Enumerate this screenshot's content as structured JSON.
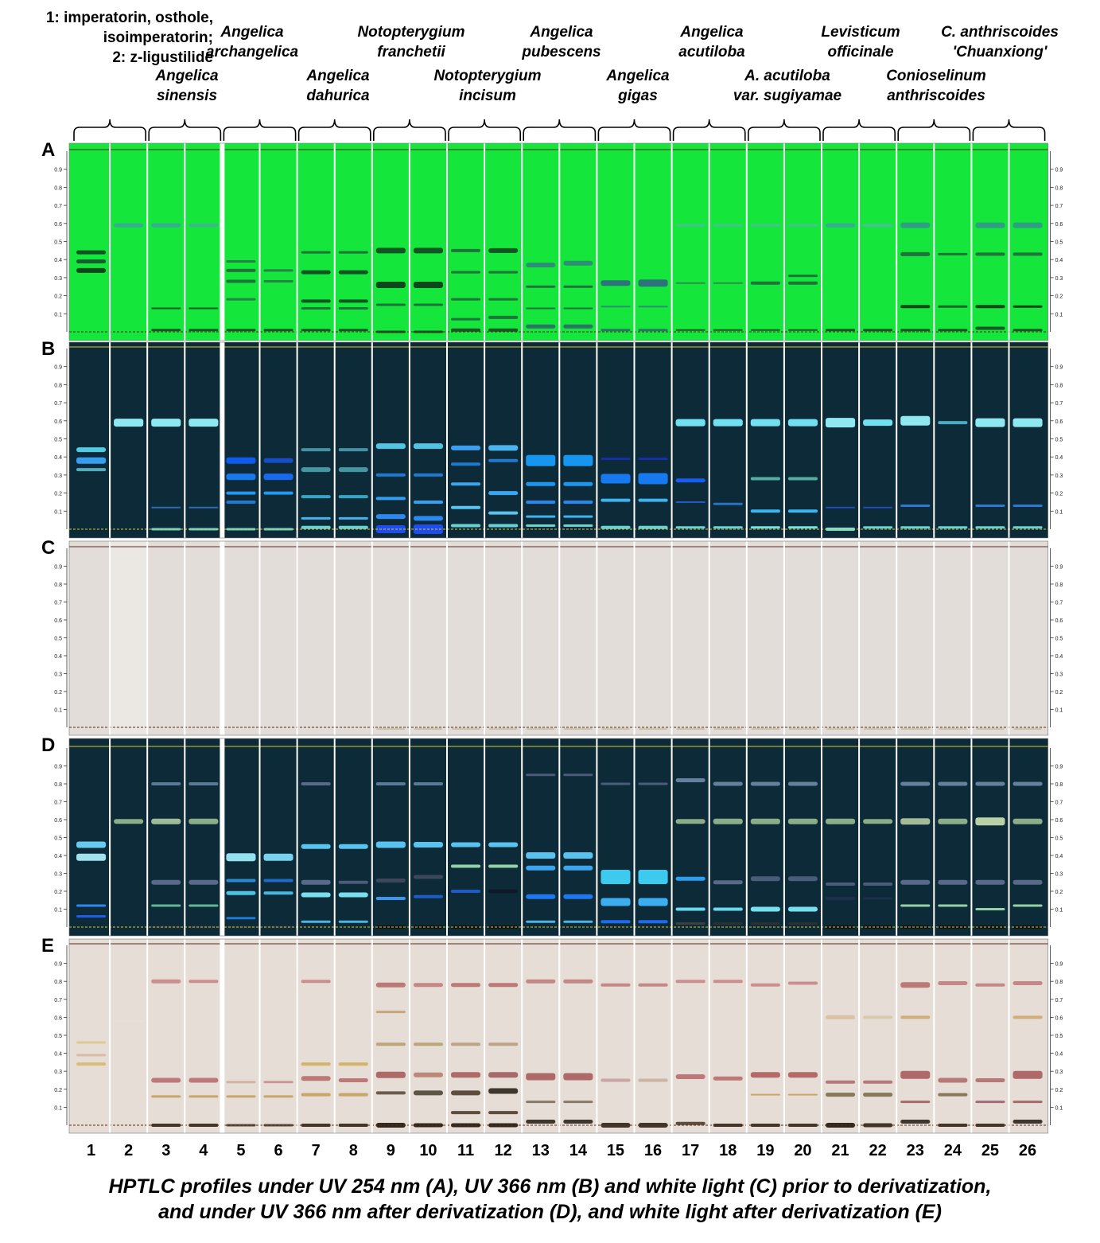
{
  "legend": {
    "line1": "1: imperatorin,  osthole,",
    "line2": "isoimperatorin;",
    "line3": "2: z-ligustilide"
  },
  "species": [
    {
      "line1": "Angelica",
      "line2": "archangelica"
    },
    {
      "line1": "Notopterygium",
      "line2": "franchetii"
    },
    {
      "line1": "Angelica",
      "line2": "pubescens"
    },
    {
      "line1": "Angelica",
      "line2": "acutiloba"
    },
    {
      "line1": "Levisticum",
      "line2": "officinale"
    },
    {
      "line1": "C. anthriscoides",
      "line2": "'Chuanxiong'"
    },
    {
      "line1": "Angelica",
      "line2": "sinensis"
    },
    {
      "line1": "Angelica",
      "line2": "dahurica"
    },
    {
      "line1": "Notopterygium",
      "line2": "incisum"
    },
    {
      "line1": "Angelica",
      "line2": "gigas"
    },
    {
      "line1": "A. acutiloba",
      "line2": "var. sugiyamae"
    },
    {
      "line1": "Conioselinum",
      "line2": "anthriscoides"
    }
  ],
  "panels": [
    "A",
    "B",
    "C",
    "D",
    "E"
  ],
  "rf_ticks": [
    "0.1",
    "0.2",
    "0.3",
    "0.4",
    "0.5",
    "0.6",
    "0.7",
    "0.8",
    "0.9"
  ],
  "tracks": [
    "1",
    "2",
    "3",
    "4",
    "5",
    "6",
    "7",
    "8",
    "9",
    "10",
    "11",
    "12",
    "13",
    "14",
    "15",
    "16",
    "17",
    "18",
    "19",
    "20",
    "21",
    "22",
    "23",
    "24",
    "25",
    "26"
  ],
  "caption": {
    "line1": "HPTLC profiles under UV 254 nm (A), UV 366 nm (B) and white light (C) prior to derivatization,",
    "line2": "and under UV 366 nm after derivatization (D), and white light after derivatization (E)"
  },
  "colors": {
    "uv254_plate": "#14e63c",
    "uv366_plate": "#0d2a38",
    "white_plate": "#e2ddd8",
    "deriv_white_plate": "#e6ddd6",
    "front_line": "#d8c832"
  }
}
